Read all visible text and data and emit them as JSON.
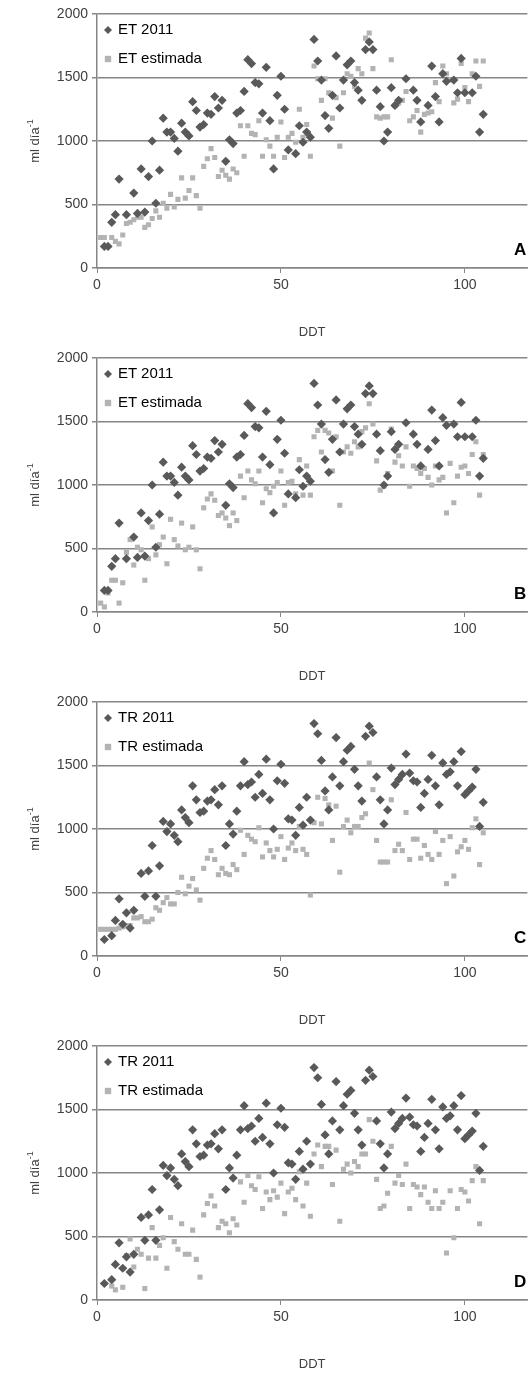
{
  "chart_data": [
    {
      "type": "scatter",
      "xlabel": "DDT",
      "ylabel": "ml día$^{-1}$",
      "xlim": [
        0,
        117
      ],
      "xticks": [
        0,
        50,
        100
      ],
      "ylim": [
        0,
        2000
      ],
      "yticks": [
        0,
        500,
        1000,
        1500,
        2000
      ],
      "grid": "y",
      "legend": "top left",
      "annotations": [
        "A"
      ],
      "series": [
        {
          "name": "ET 2011",
          "color": "#595959",
          "marker": "diamond",
          "x": [
            2,
            3,
            4,
            5,
            6,
            8,
            10,
            11,
            12,
            13,
            14,
            15,
            16,
            17,
            18,
            19,
            20,
            21,
            22,
            23,
            24,
            25,
            26,
            27,
            28,
            29,
            30,
            31,
            32,
            33,
            34,
            35,
            36,
            37,
            38,
            39,
            40,
            41,
            42,
            43,
            44,
            45,
            46,
            47,
            48,
            49,
            50,
            51,
            52,
            54,
            55,
            56,
            57,
            58,
            59,
            60,
            61,
            62,
            63,
            64,
            65,
            66,
            67,
            68,
            69,
            70,
            71,
            72,
            73,
            74,
            75,
            76,
            77,
            78,
            79,
            80,
            81,
            82,
            84,
            86,
            87,
            88,
            90,
            91,
            92,
            93,
            94,
            95,
            97,
            98,
            99,
            100,
            102,
            103,
            104,
            105
          ],
          "values": [
            170,
            170,
            360,
            420,
            700,
            420,
            590,
            430,
            780,
            440,
            720,
            1000,
            510,
            770,
            1180,
            1070,
            1070,
            1020,
            920,
            1140,
            1070,
            1040,
            1310,
            1240,
            1110,
            1130,
            1220,
            1210,
            1350,
            1260,
            1320,
            840,
            1010,
            980,
            1220,
            1240,
            1390,
            1640,
            1610,
            1460,
            1450,
            1220,
            1580,
            1160,
            780,
            1360,
            1510,
            1250,
            930,
            900,
            1120,
            990,
            1070,
            1030,
            1800,
            1630,
            1480,
            1200,
            1100,
            1360,
            1670,
            1260,
            1480,
            1600,
            1630,
            1460,
            1400,
            1320,
            1720,
            1780,
            1720,
            1400,
            1270,
            1000,
            1070,
            1420,
            1280,
            1320,
            1490,
            1400,
            1320,
            1150,
            1280,
            1590,
            1350,
            1150,
            1530,
            1470,
            1480,
            1380,
            1650,
            1380,
            1380,
            1510,
            1070,
            1210
          ]
        },
        {
          "name": "ET estimada",
          "color": "#b3b3b3",
          "marker": "square",
          "x": [
            1,
            2,
            4,
            5,
            6,
            7,
            8,
            9,
            10,
            11,
            12,
            13,
            14,
            15,
            16,
            17,
            18,
            19,
            20,
            21,
            22,
            23,
            24,
            25,
            26,
            27,
            28,
            29,
            30,
            31,
            32,
            33,
            34,
            35,
            36,
            37,
            38,
            39,
            40,
            41,
            42,
            43,
            44,
            45,
            46,
            47,
            48,
            49,
            50,
            51,
            52,
            53,
            54,
            55,
            56,
            57,
            58,
            59,
            60,
            61,
            62,
            63,
            64,
            65,
            66,
            67,
            68,
            69,
            70,
            71,
            72,
            73,
            74,
            75,
            76,
            77,
            78,
            79,
            80,
            81,
            82,
            83,
            84,
            85,
            86,
            87,
            88,
            89,
            90,
            91,
            92,
            93,
            94,
            95,
            96,
            97,
            98,
            99,
            100,
            101,
            102,
            103,
            104,
            105
          ],
          "values": [
            240,
            240,
            240,
            210,
            190,
            260,
            350,
            360,
            380,
            400,
            400,
            320,
            340,
            390,
            450,
            400,
            510,
            470,
            580,
            480,
            540,
            710,
            550,
            610,
            710,
            570,
            470,
            800,
            860,
            940,
            870,
            720,
            770,
            730,
            700,
            780,
            750,
            1120,
            880,
            1120,
            1060,
            1050,
            1160,
            880,
            1010,
            960,
            880,
            1030,
            1150,
            870,
            1030,
            1060,
            990,
            1250,
            1030,
            1130,
            880,
            1590,
            1490,
            1320,
            1490,
            1380,
            1180,
            1340,
            960,
            1380,
            1530,
            1510,
            1430,
            1570,
            1530,
            1810,
            1850,
            1570,
            1190,
            1180,
            1190,
            1190,
            1640,
            1280,
            1300,
            1320,
            1390,
            1160,
            1190,
            1240,
            1070,
            1210,
            1220,
            1230,
            1460,
            1310,
            1590,
            1530,
            1480,
            1300,
            1330,
            1610,
            1420,
            1310,
            1530,
            1630,
            1430,
            1630
          ]
        }
      ]
    },
    {
      "type": "scatter",
      "xlabel": "DDT",
      "ylabel": "ml día$^{-1}$",
      "xlim": [
        0,
        117
      ],
      "xticks": [
        0,
        50,
        100
      ],
      "ylim": [
        0,
        2000
      ],
      "yticks": [
        0,
        500,
        1000,
        1500,
        2000
      ],
      "grid": "y",
      "legend": "top left",
      "annotations": [
        "B"
      ],
      "series": [
        {
          "name": "ET 2011",
          "color": "#595959",
          "marker": "diamond",
          "x": [
            2,
            3,
            4,
            5,
            6,
            8,
            10,
            11,
            12,
            13,
            14,
            15,
            16,
            17,
            18,
            19,
            20,
            21,
            22,
            23,
            24,
            25,
            26,
            27,
            28,
            29,
            30,
            31,
            32,
            33,
            34,
            35,
            36,
            37,
            38,
            39,
            40,
            41,
            42,
            43,
            44,
            45,
            46,
            47,
            48,
            49,
            50,
            51,
            52,
            54,
            55,
            56,
            57,
            58,
            59,
            60,
            61,
            62,
            63,
            64,
            65,
            66,
            67,
            68,
            69,
            70,
            71,
            72,
            73,
            74,
            75,
            76,
            77,
            78,
            79,
            80,
            81,
            82,
            84,
            86,
            87,
            88,
            90,
            91,
            92,
            93,
            94,
            95,
            97,
            98,
            99,
            100,
            102,
            103,
            104,
            105
          ],
          "values": [
            170,
            170,
            360,
            420,
            700,
            420,
            590,
            430,
            780,
            440,
            720,
            1000,
            510,
            770,
            1180,
            1070,
            1070,
            1020,
            920,
            1140,
            1070,
            1040,
            1310,
            1240,
            1110,
            1130,
            1220,
            1210,
            1350,
            1260,
            1320,
            840,
            1010,
            980,
            1220,
            1240,
            1390,
            1640,
            1610,
            1460,
            1450,
            1220,
            1580,
            1160,
            780,
            1360,
            1510,
            1250,
            930,
            900,
            1120,
            990,
            1070,
            1030,
            1800,
            1630,
            1480,
            1200,
            1100,
            1360,
            1670,
            1260,
            1480,
            1600,
            1630,
            1460,
            1400,
            1320,
            1720,
            1780,
            1720,
            1400,
            1270,
            1000,
            1070,
            1420,
            1280,
            1320,
            1490,
            1400,
            1320,
            1150,
            1280,
            1590,
            1350,
            1150,
            1530,
            1470,
            1480,
            1380,
            1650,
            1380,
            1380,
            1510,
            1070,
            1210
          ]
        },
        {
          "name": "ET estimada",
          "color": "#b3b3b3",
          "marker": "square",
          "x": [
            1,
            2,
            3,
            4,
            5,
            6,
            7,
            8,
            9,
            10,
            11,
            12,
            13,
            14,
            15,
            16,
            17,
            18,
            19,
            20,
            21,
            22,
            23,
            24,
            25,
            26,
            27,
            28,
            29,
            30,
            31,
            32,
            33,
            34,
            35,
            36,
            37,
            38,
            39,
            40,
            41,
            42,
            43,
            44,
            45,
            46,
            47,
            48,
            49,
            50,
            51,
            52,
            53,
            54,
            55,
            56,
            57,
            58,
            59,
            60,
            61,
            62,
            63,
            64,
            65,
            66,
            67,
            68,
            69,
            70,
            71,
            72,
            73,
            74,
            75,
            76,
            77,
            78,
            79,
            80,
            81,
            82,
            83,
            84,
            85,
            86,
            87,
            88,
            89,
            90,
            91,
            92,
            93,
            94,
            95,
            96,
            97,
            98,
            99,
            100,
            101,
            102,
            103,
            104,
            105
          ],
          "values": [
            70,
            40,
            150,
            250,
            250,
            70,
            230,
            470,
            570,
            370,
            510,
            490,
            250,
            420,
            670,
            450,
            530,
            590,
            380,
            730,
            570,
            520,
            700,
            490,
            510,
            670,
            490,
            340,
            820,
            890,
            930,
            880,
            760,
            780,
            740,
            680,
            780,
            720,
            1070,
            900,
            1110,
            1040,
            1010,
            1110,
            860,
            970,
            940,
            990,
            1020,
            1110,
            840,
            1020,
            1030,
            930,
            1200,
            920,
            1150,
            920,
            1380,
            1430,
            1260,
            1430,
            1410,
            1110,
            1380,
            840,
            1260,
            1300,
            1250,
            1340,
            1300,
            1420,
            1450,
            1640,
            1480,
            1190,
            960,
            990,
            1090,
            1440,
            1180,
            1230,
            1150,
            1300,
            990,
            1150,
            1130,
            1090,
            1130,
            1060,
            1000,
            1150,
            1040,
            1060,
            780,
            1170,
            860,
            1070,
            1140,
            1150,
            1090,
            1240,
            1340,
            920,
            1240
          ]
        }
      ]
    },
    {
      "type": "scatter",
      "xlabel": "DDT",
      "ylabel": "ml día$^{-1}$",
      "xlim": [
        0,
        117
      ],
      "xticks": [
        0,
        50,
        100
      ],
      "ylim": [
        0,
        2000
      ],
      "yticks": [
        0,
        500,
        1000,
        1500,
        2000
      ],
      "grid": "y",
      "legend": "top left",
      "annotations": [
        "C"
      ],
      "series": [
        {
          "name": "TR 2011",
          "color": "#595959",
          "marker": "diamond",
          "x": [
            2,
            4,
            5,
            6,
            7,
            8,
            9,
            10,
            12,
            13,
            14,
            15,
            16,
            17,
            18,
            19,
            20,
            21,
            22,
            23,
            24,
            25,
            26,
            27,
            28,
            29,
            30,
            31,
            32,
            33,
            34,
            35,
            36,
            37,
            38,
            39,
            40,
            41,
            42,
            43,
            44,
            45,
            46,
            47,
            48,
            49,
            50,
            51,
            52,
            53,
            54,
            55,
            56,
            57,
            58,
            59,
            60,
            61,
            62,
            63,
            64,
            65,
            66,
            67,
            68,
            69,
            70,
            71,
            72,
            73,
            74,
            75,
            76,
            77,
            78,
            79,
            80,
            81,
            82,
            83,
            84,
            85,
            86,
            87,
            88,
            89,
            90,
            91,
            92,
            93,
            94,
            95,
            96,
            97,
            98,
            99,
            100,
            101,
            102,
            103,
            104,
            105
          ],
          "values": [
            130,
            160,
            280,
            450,
            250,
            340,
            220,
            360,
            650,
            470,
            670,
            870,
            470,
            710,
            1060,
            980,
            1040,
            950,
            900,
            1150,
            1090,
            1050,
            1340,
            1230,
            1130,
            1140,
            1220,
            1230,
            1310,
            1190,
            1340,
            870,
            1040,
            960,
            1140,
            1340,
            1530,
            1350,
            1370,
            1250,
            1430,
            1280,
            1550,
            1230,
            1000,
            1380,
            1510,
            1360,
            1080,
            1070,
            950,
            1170,
            1030,
            1250,
            1070,
            1830,
            1750,
            1540,
            1300,
            1150,
            1410,
            1720,
            1340,
            1530,
            1620,
            1650,
            1470,
            1340,
            1220,
            1730,
            1810,
            1760,
            1410,
            1230,
            1040,
            1150,
            1480,
            1350,
            1390,
            1430,
            1590,
            1440,
            1380,
            1370,
            1170,
            1280,
            1390,
            1580,
            1340,
            1190,
            1520,
            1430,
            1450,
            1530,
            1340,
            1610,
            1270,
            1300,
            1330,
            1470,
            1020,
            1210
          ]
        },
        {
          "name": "TR estimada",
          "color": "#b3b3b3",
          "marker": "square",
          "x": [
            1,
            2,
            3,
            4,
            5,
            6,
            7,
            8,
            9,
            10,
            11,
            12,
            13,
            14,
            15,
            16,
            17,
            18,
            19,
            20,
            21,
            22,
            23,
            24,
            25,
            26,
            27,
            28,
            29,
            30,
            31,
            32,
            33,
            34,
            35,
            36,
            37,
            38,
            39,
            40,
            41,
            42,
            43,
            44,
            45,
            46,
            47,
            48,
            49,
            50,
            51,
            52,
            53,
            54,
            55,
            56,
            57,
            58,
            59,
            60,
            61,
            62,
            63,
            64,
            65,
            66,
            67,
            68,
            69,
            70,
            71,
            72,
            73,
            74,
            75,
            76,
            77,
            78,
            79,
            80,
            81,
            82,
            83,
            84,
            85,
            86,
            87,
            88,
            89,
            90,
            91,
            92,
            93,
            94,
            95,
            96,
            97,
            98,
            99,
            100,
            101,
            102,
            103,
            104,
            105
          ],
          "values": [
            210,
            210,
            210,
            210,
            210,
            220,
            230,
            240,
            240,
            300,
            300,
            310,
            270,
            270,
            290,
            380,
            360,
            420,
            460,
            410,
            410,
            500,
            620,
            490,
            550,
            610,
            520,
            440,
            690,
            770,
            830,
            760,
            640,
            690,
            650,
            640,
            720,
            680,
            990,
            800,
            950,
            920,
            900,
            1010,
            780,
            890,
            830,
            780,
            840,
            940,
            760,
            850,
            890,
            830,
            1020,
            840,
            800,
            480,
            1050,
            1250,
            1040,
            1240,
            1190,
            910,
            1180,
            660,
            1020,
            1070,
            970,
            1020,
            1020,
            1090,
            1120,
            1520,
            1310,
            910,
            740,
            740,
            740,
            1230,
            830,
            880,
            830,
            1130,
            760,
            920,
            920,
            770,
            870,
            800,
            760,
            980,
            800,
            910,
            570,
            940,
            630,
            820,
            860,
            910,
            840,
            1010,
            1080,
            720,
            970
          ]
        }
      ]
    },
    {
      "type": "scatter",
      "xlabel": "DDT",
      "ylabel": "ml día$^{-1}$",
      "xlim": [
        0,
        117
      ],
      "xticks": [
        0,
        50,
        100
      ],
      "ylim": [
        0,
        2000
      ],
      "yticks": [
        0,
        500,
        1000,
        1500,
        2000
      ],
      "grid": "y",
      "legend": "top left",
      "annotations": [
        "D"
      ],
      "series": [
        {
          "name": "TR 2011",
          "color": "#595959",
          "marker": "diamond",
          "x": [
            2,
            4,
            5,
            6,
            7,
            8,
            9,
            10,
            12,
            13,
            14,
            15,
            16,
            17,
            18,
            19,
            20,
            21,
            22,
            23,
            24,
            25,
            26,
            27,
            28,
            29,
            30,
            31,
            32,
            33,
            34,
            35,
            36,
            37,
            38,
            39,
            40,
            41,
            42,
            43,
            44,
            45,
            46,
            47,
            48,
            49,
            50,
            51,
            52,
            53,
            54,
            55,
            56,
            57,
            58,
            59,
            60,
            61,
            62,
            63,
            64,
            65,
            66,
            67,
            68,
            69,
            70,
            71,
            72,
            73,
            74,
            75,
            76,
            77,
            78,
            79,
            80,
            81,
            82,
            83,
            84,
            85,
            86,
            87,
            88,
            89,
            90,
            91,
            92,
            93,
            94,
            95,
            96,
            97,
            98,
            99,
            100,
            101,
            102,
            103,
            104,
            105
          ],
          "values": [
            130,
            160,
            280,
            450,
            250,
            340,
            220,
            360,
            650,
            470,
            670,
            870,
            470,
            710,
            1060,
            980,
            1040,
            950,
            900,
            1150,
            1090,
            1050,
            1340,
            1230,
            1130,
            1140,
            1220,
            1230,
            1310,
            1190,
            1340,
            870,
            1040,
            960,
            1140,
            1340,
            1530,
            1350,
            1370,
            1250,
            1430,
            1280,
            1550,
            1230,
            1000,
            1380,
            1510,
            1360,
            1080,
            1070,
            950,
            1170,
            1030,
            1250,
            1070,
            1830,
            1750,
            1540,
            1300,
            1150,
            1410,
            1720,
            1340,
            1530,
            1620,
            1650,
            1470,
            1340,
            1220,
            1730,
            1810,
            1760,
            1410,
            1230,
            1040,
            1150,
            1480,
            1350,
            1390,
            1430,
            1590,
            1440,
            1380,
            1370,
            1170,
            1280,
            1390,
            1580,
            1340,
            1190,
            1520,
            1430,
            1450,
            1530,
            1340,
            1610,
            1270,
            1300,
            1330,
            1470,
            1020,
            1210
          ]
        },
        {
          "name": "TR estimada",
          "color": "#b3b3b3",
          "marker": "square",
          "x": [
            4,
            5,
            7,
            8,
            9,
            10,
            11,
            12,
            13,
            14,
            15,
            16,
            17,
            18,
            19,
            20,
            21,
            22,
            23,
            24,
            25,
            26,
            27,
            28,
            29,
            30,
            31,
            32,
            33,
            34,
            35,
            36,
            37,
            38,
            39,
            40,
            41,
            42,
            43,
            44,
            45,
            46,
            47,
            48,
            49,
            50,
            51,
            52,
            53,
            54,
            55,
            56,
            57,
            58,
            59,
            60,
            61,
            62,
            63,
            64,
            65,
            66,
            67,
            68,
            69,
            70,
            71,
            72,
            73,
            74,
            75,
            76,
            77,
            78,
            79,
            80,
            81,
            82,
            83,
            84,
            85,
            86,
            87,
            88,
            89,
            90,
            91,
            92,
            93,
            94,
            95,
            96,
            97,
            98,
            99,
            100,
            101,
            102,
            103,
            104,
            105
          ],
          "values": [
            110,
            80,
            100,
            350,
            480,
            260,
            400,
            360,
            90,
            330,
            570,
            330,
            430,
            490,
            250,
            650,
            460,
            400,
            600,
            360,
            360,
            550,
            320,
            180,
            670,
            760,
            820,
            740,
            570,
            620,
            600,
            530,
            640,
            590,
            930,
            770,
            980,
            900,
            870,
            970,
            720,
            850,
            790,
            860,
            810,
            920,
            680,
            850,
            880,
            790,
            1010,
            740,
            920,
            660,
            1150,
            1220,
            1050,
            1210,
            1210,
            910,
            1180,
            620,
            1030,
            1070,
            1000,
            1090,
            1050,
            1150,
            1150,
            1420,
            1250,
            950,
            720,
            740,
            840,
            1210,
            920,
            980,
            910,
            1070,
            720,
            910,
            890,
            830,
            890,
            770,
            720,
            860,
            720,
            770,
            370,
            860,
            490,
            720,
            870,
            850,
            780,
            940,
            1050,
            600,
            940
          ]
        }
      ]
    }
  ]
}
